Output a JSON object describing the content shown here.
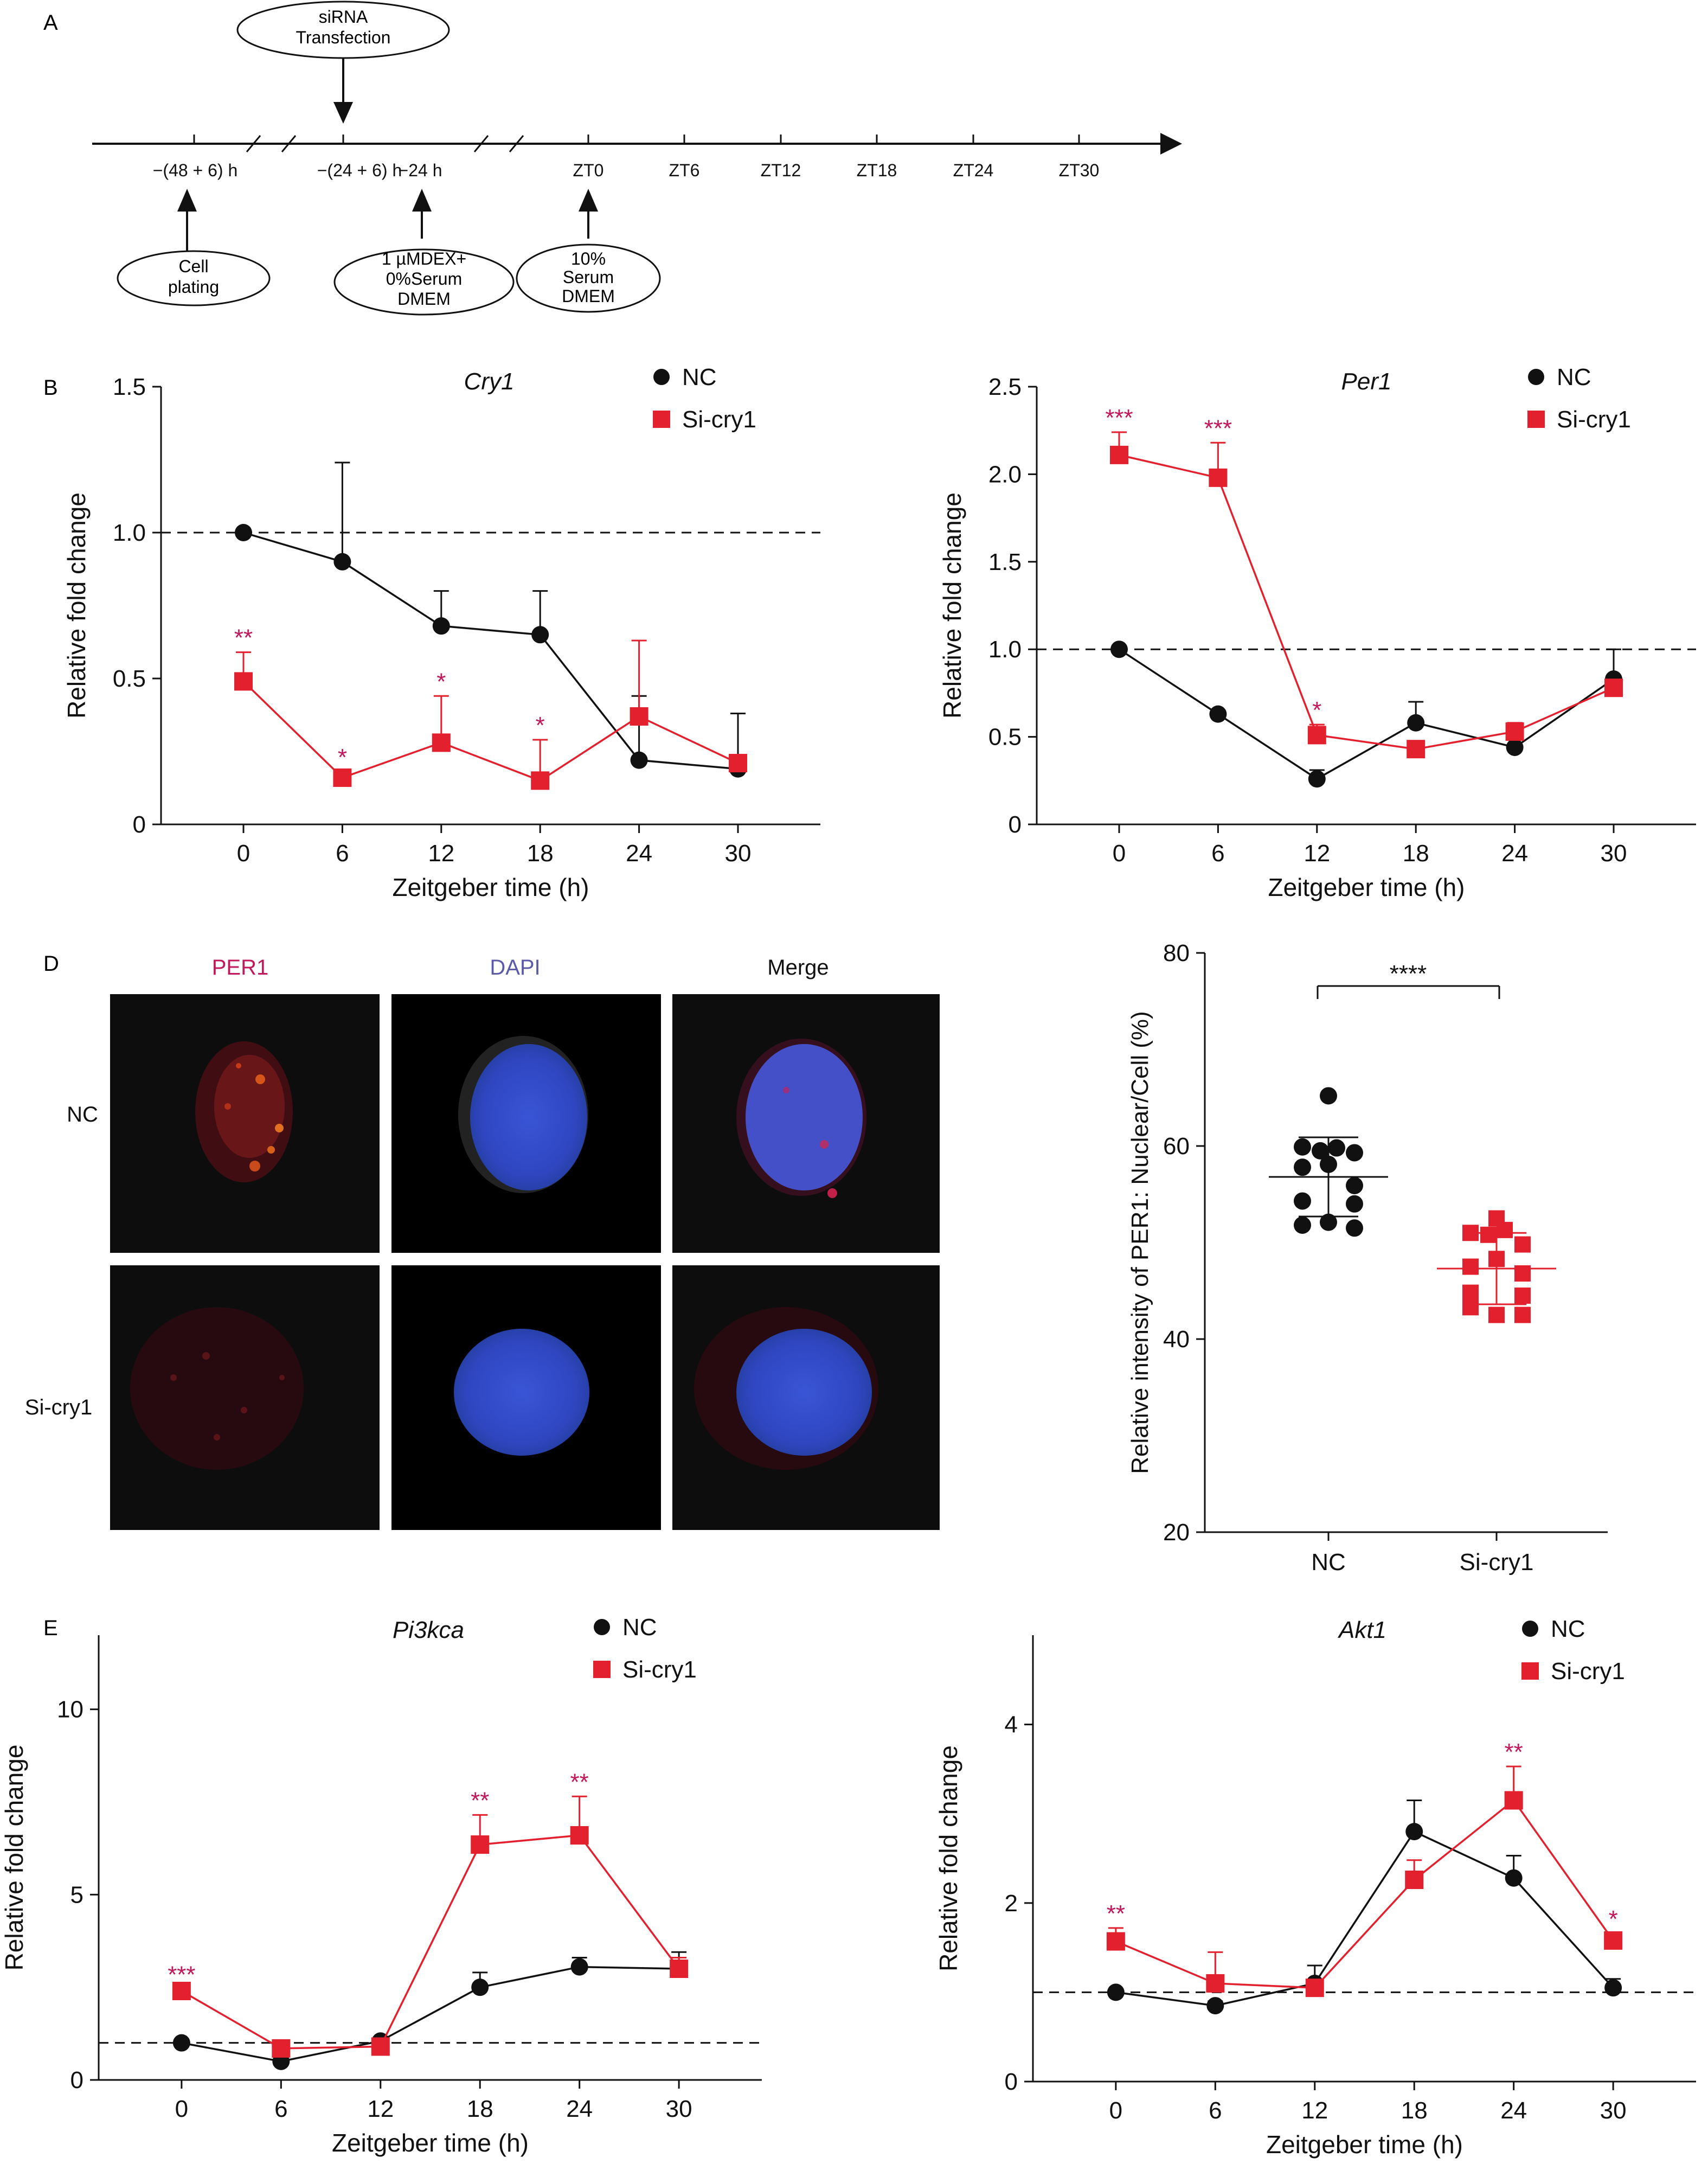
{
  "panel_letters": {
    "a": "A",
    "b": "B",
    "d": "D",
    "e": "E"
  },
  "colors": {
    "nc": "#111111",
    "si": "#e3202e",
    "star": "#c2185b",
    "per1_label": "#c2185b",
    "dapi_label": "#5a5aa8"
  },
  "timeline": {
    "siRNA_l1": "siRNA",
    "siRNA_l2": "Transfection",
    "ticks": [
      "−(48 + 6) h",
      "−(24 + 6) h",
      "−24 h",
      "ZT0",
      "ZT6",
      "ZT12",
      "ZT18",
      "ZT24",
      "ZT30"
    ],
    "cell_l1": "Cell",
    "cell_l2": "plating",
    "dex_l1": "1 µMDEX+",
    "dex_l2": "0%Serum",
    "dex_l3": "DMEM",
    "serum_l1": "10%",
    "serum_l2": "Serum",
    "serum_l3": "DMEM"
  },
  "panel_d": {
    "col_labels": [
      "PER1",
      "DAPI",
      "Merge"
    ],
    "row_labels": [
      "NC",
      "Si-cry1"
    ]
  },
  "chart_data": [
    {
      "id": "cry1",
      "type": "line",
      "title": "Cry1",
      "xlabel": "Zeitgeber time (h)",
      "ylabel": "Relative fold change",
      "x": [
        0,
        6,
        12,
        18,
        24,
        30
      ],
      "xlim": [
        -5,
        35
      ],
      "ylim": [
        0,
        1.5
      ],
      "yticks": [
        "0",
        "0.5",
        "1.0",
        "1.5"
      ],
      "ytick_values": [
        0,
        0.5,
        1.0,
        1.5
      ],
      "reference_line": 1.0,
      "legend": [
        "NC",
        "Si-cry1"
      ],
      "series": [
        {
          "name": "NC",
          "values": [
            1.0,
            0.9,
            0.68,
            0.65,
            0.22,
            0.19
          ],
          "err": [
            0,
            0.34,
            0.12,
            0.15,
            0.22,
            0.19
          ]
        },
        {
          "name": "Si-cry1",
          "values": [
            0.49,
            0.16,
            0.28,
            0.15,
            0.37,
            0.21
          ],
          "err": [
            0.1,
            0.02,
            0.16,
            0.14,
            0.26,
            0.02
          ]
        }
      ],
      "significance": [
        "**",
        "*",
        "*",
        "*",
        "",
        ""
      ]
    },
    {
      "id": "per1",
      "type": "line",
      "title": "Per1",
      "xlabel": "Zeitgeber time (h)",
      "ylabel": "Relative fold change",
      "x": [
        0,
        6,
        12,
        18,
        24,
        30
      ],
      "xlim": [
        -5,
        35
      ],
      "ylim": [
        0,
        2.5
      ],
      "yticks": [
        "0",
        "0.5",
        "1.0",
        "1.5",
        "2.0",
        "2.5"
      ],
      "ytick_values": [
        0,
        0.5,
        1.0,
        1.5,
        2.0,
        2.5
      ],
      "reference_line": 1.0,
      "legend": [
        "NC",
        "Si-cry1"
      ],
      "series": [
        {
          "name": "NC",
          "values": [
            1.0,
            0.63,
            0.26,
            0.58,
            0.44,
            0.83
          ],
          "err": [
            0,
            0.02,
            0.05,
            0.12,
            0.1,
            0.17
          ]
        },
        {
          "name": "Si-cry1",
          "values": [
            2.11,
            1.98,
            0.51,
            0.43,
            0.53,
            0.78
          ],
          "err": [
            0.13,
            0.2,
            0.06,
            0.04,
            0.05,
            0.02
          ]
        }
      ],
      "significance": [
        "***",
        "***",
        "*",
        "",
        "",
        ""
      ]
    },
    {
      "id": "per1_intensity",
      "type": "scatter",
      "ylabel": "Relative intensity of PER1: Nuclear/Cell (%)",
      "categories": [
        "NC",
        "Si-cry1"
      ],
      "ylim": [
        20,
        80
      ],
      "yticks": [
        "20",
        "40",
        "60",
        "80"
      ],
      "ytick_values": [
        20,
        40,
        60,
        80
      ],
      "significance": "****",
      "series": [
        {
          "name": "NC",
          "mean": 56.8,
          "sd": 4.1,
          "points": [
            65.2,
            59.9,
            59.5,
            59.8,
            59.3,
            58.1,
            57.8,
            55.9,
            54.3,
            54.0,
            51.8,
            51.5,
            52.1
          ]
        },
        {
          "name": "Si-cry1",
          "mean": 47.3,
          "sd": 3.7,
          "points": [
            52.5,
            51.0,
            50.8,
            51.3,
            49.8,
            48.3,
            47.5,
            46.8,
            44.8,
            44.5,
            43.3,
            42.5,
            42.5
          ]
        }
      ]
    },
    {
      "id": "pi3kca",
      "type": "line",
      "title": "Pi3kca",
      "xlabel": "Zeitgeber time (h)",
      "ylabel": "Relative fold change",
      "x": [
        0,
        6,
        12,
        18,
        24,
        30
      ],
      "xlim": [
        -5,
        35
      ],
      "ylim": [
        0,
        12
      ],
      "yticks": [
        "0",
        "5",
        "10"
      ],
      "ytick_values": [
        0,
        5,
        10
      ],
      "reference_line": 1.0,
      "legend": [
        "NC",
        "Si-cry1"
      ],
      "series": [
        {
          "name": "NC",
          "values": [
            1.0,
            0.5,
            1.05,
            2.5,
            3.05,
            3.0
          ],
          "err": [
            0,
            0.05,
            0.1,
            0.4,
            0.25,
            0.45
          ]
        },
        {
          "name": "Si-cry1",
          "values": [
            2.4,
            0.85,
            0.9,
            6.35,
            6.6,
            3.0
          ],
          "err": [
            0.05,
            0.05,
            0.05,
            0.8,
            1.05,
            0.3
          ]
        }
      ],
      "significance": [
        "***",
        "",
        "",
        "**",
        "**",
        ""
      ]
    },
    {
      "id": "akt1",
      "type": "line",
      "title": "Akt1",
      "xlabel": "Zeitgeber time (h)",
      "ylabel": "Relative fold change",
      "x": [
        0,
        6,
        12,
        18,
        24,
        30
      ],
      "xlim": [
        -5,
        35
      ],
      "ylim": [
        0,
        5
      ],
      "yticks": [
        "0",
        "2",
        "4"
      ],
      "ytick_values": [
        0,
        2,
        4
      ],
      "reference_line": 1.0,
      "legend": [
        "NC",
        "Si-cry1"
      ],
      "series": [
        {
          "name": "NC",
          "values": [
            1.0,
            0.85,
            1.1,
            2.8,
            2.28,
            1.05
          ],
          "err": [
            0,
            0.05,
            0.2,
            0.35,
            0.25,
            0.1
          ]
        },
        {
          "name": "Si-cry1",
          "values": [
            1.57,
            1.1,
            1.05,
            2.26,
            3.15,
            1.58
          ],
          "err": [
            0.15,
            0.35,
            0.05,
            0.22,
            0.38,
            0.08
          ]
        }
      ],
      "significance": [
        "**",
        "",
        "",
        "",
        "**",
        "*"
      ]
    }
  ]
}
